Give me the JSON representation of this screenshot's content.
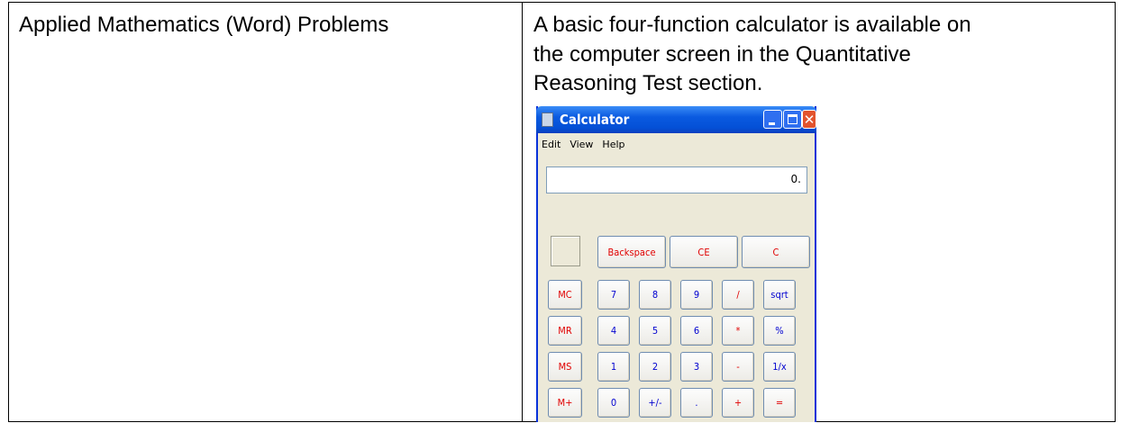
{
  "table": {
    "rows": [
      [
        {
          "text_lines": [
            "Applied Mathematics (Word) Problems"
          ]
        },
        {
          "text_lines": [
            "A basic four-function calculator is available on",
            "the computer screen in the Quantitative",
            "Reasoning Test section."
          ]
        }
      ]
    ]
  },
  "calculator": {
    "title": "Calculator",
    "menu": [
      "Edit",
      "View",
      "Help"
    ],
    "display": "0.",
    "top_buttons": [
      {
        "label": "Backspace",
        "color": "#e00000"
      },
      {
        "label": "CE",
        "color": "#e00000"
      },
      {
        "label": "C",
        "color": "#e00000"
      }
    ],
    "button_rows": [
      [
        {
          "label": "MC",
          "color": "#e00000"
        },
        {
          "label": "7",
          "color": "#0000d0"
        },
        {
          "label": "8",
          "color": "#0000d0"
        },
        {
          "label": "9",
          "color": "#0000d0"
        },
        {
          "label": "/",
          "color": "#e00000"
        },
        {
          "label": "sqrt",
          "color": "#0000d0"
        }
      ],
      [
        {
          "label": "MR",
          "color": "#e00000"
        },
        {
          "label": "4",
          "color": "#0000d0"
        },
        {
          "label": "5",
          "color": "#0000d0"
        },
        {
          "label": "6",
          "color": "#0000d0"
        },
        {
          "label": "*",
          "color": "#e00000"
        },
        {
          "label": "%",
          "color": "#0000d0"
        }
      ],
      [
        {
          "label": "MS",
          "color": "#e00000"
        },
        {
          "label": "1",
          "color": "#0000d0"
        },
        {
          "label": "2",
          "color": "#0000d0"
        },
        {
          "label": "3",
          "color": "#0000d0"
        },
        {
          "label": "-",
          "color": "#e00000"
        },
        {
          "label": "1/x",
          "color": "#0000d0"
        }
      ],
      [
        {
          "label": "M+",
          "color": "#e00000"
        },
        {
          "label": "0",
          "color": "#0000d0"
        },
        {
          "label": "+/-",
          "color": "#0000d0"
        },
        {
          "label": ".",
          "color": "#0000d0"
        },
        {
          "label": "+",
          "color": "#e00000"
        },
        {
          "label": "=",
          "color": "#e00000"
        }
      ]
    ]
  }
}
